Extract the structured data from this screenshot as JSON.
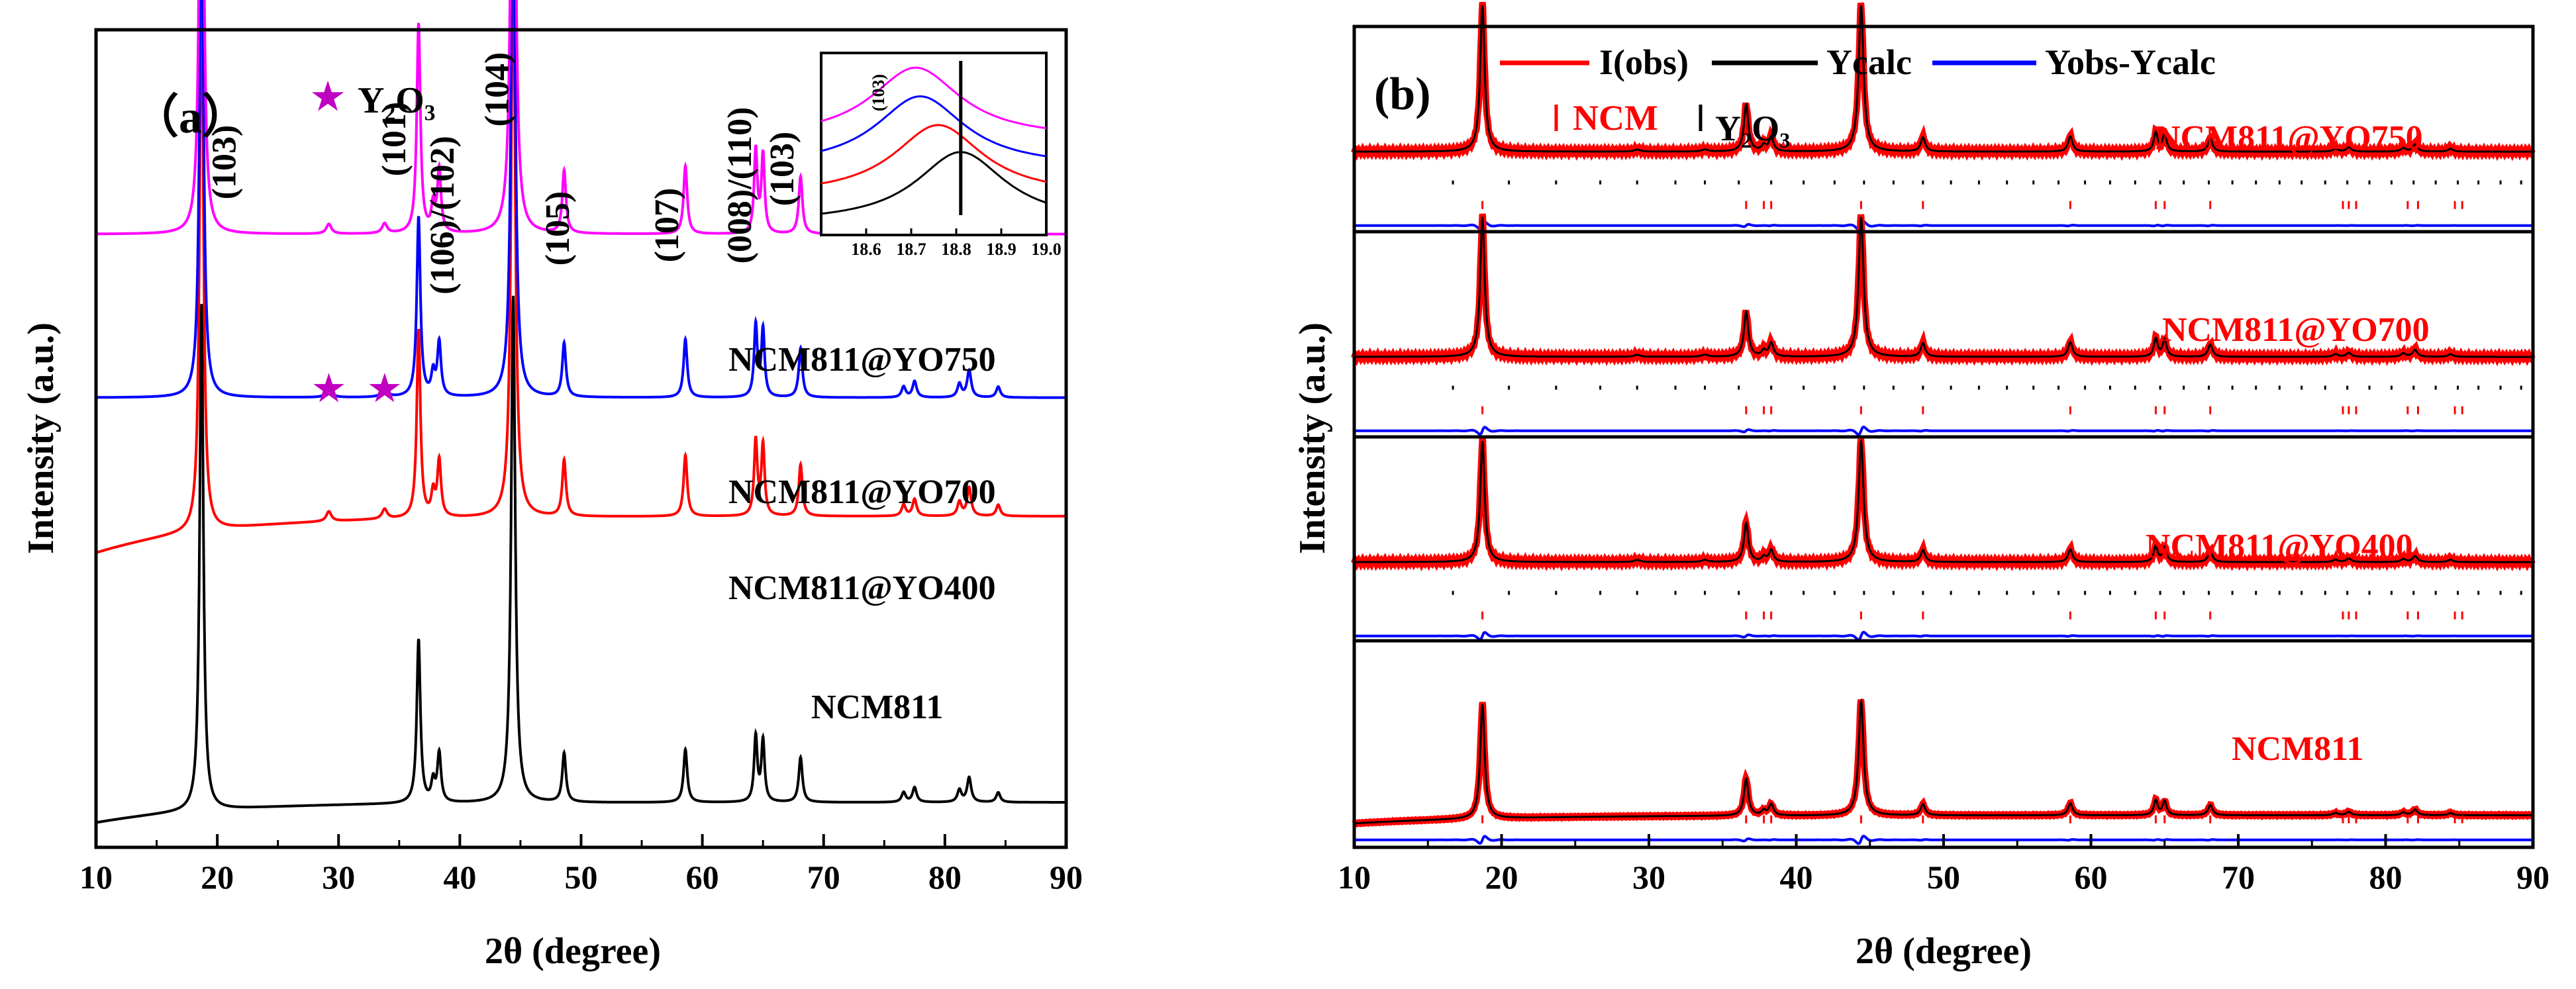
{
  "chart_data": [
    {
      "type": "line",
      "panel_label": "（a）",
      "title": "",
      "xlabel": "2θ (degree)",
      "ylabel": "Intensity (a.u.)",
      "xlim": [
        10,
        90
      ],
      "xticks": [
        "10",
        "20",
        "30",
        "40",
        "50",
        "60",
        "70",
        "80",
        "90"
      ],
      "legend_marker": {
        "symbol": "★",
        "text": "Y₂O₃",
        "color": "#c000c0"
      },
      "series": [
        {
          "name": "NCM811",
          "color": "#000000",
          "baseline": 0.03,
          "tilt": 0.025,
          "scale": 1.0
        },
        {
          "name": "NCM811@YO400",
          "color": "#ff0000",
          "baseline": 0.36,
          "tilt": 0.045,
          "scale": 1.15
        },
        {
          "name": "NCM811@YO700",
          "color": "#0000ff",
          "baseline": 0.55,
          "tilt": 0.0,
          "scale": 1.1
        },
        {
          "name": "NCM811@YO750",
          "color": "#ff00ff",
          "baseline": 0.75,
          "tilt": 0.0,
          "scale": 1.28
        }
      ],
      "peaks": [
        {
          "x": 18.7,
          "h": 0.62,
          "w": 0.18
        },
        {
          "x": 36.6,
          "h": 0.2,
          "w": 0.18
        },
        {
          "x": 37.8,
          "h": 0.025,
          "w": 0.18
        },
        {
          "x": 38.3,
          "h": 0.06,
          "w": 0.18
        },
        {
          "x": 44.4,
          "h": 0.62,
          "w": 0.2
        },
        {
          "x": 48.6,
          "h": 0.06,
          "w": 0.18
        },
        {
          "x": 58.6,
          "h": 0.065,
          "w": 0.18
        },
        {
          "x": 64.4,
          "h": 0.08,
          "w": 0.16
        },
        {
          "x": 65.0,
          "h": 0.075,
          "w": 0.16
        },
        {
          "x": 68.1,
          "h": 0.055,
          "w": 0.18
        },
        {
          "x": 76.6,
          "h": 0.012,
          "w": 0.2
        },
        {
          "x": 77.5,
          "h": 0.018,
          "w": 0.2
        },
        {
          "x": 81.2,
          "h": 0.015,
          "w": 0.2
        },
        {
          "x": 82.0,
          "h": 0.03,
          "w": 0.2
        },
        {
          "x": 84.4,
          "h": 0.012,
          "w": 0.2
        }
      ],
      "y2o3_peaks": [
        29.2,
        33.8
      ],
      "y2o3_markers": [
        29.2,
        33.8
      ],
      "peak_labels": [
        {
          "text": "(103)",
          "x": 21.5
        },
        {
          "text": "(101)",
          "x": 35.5
        },
        {
          "text": "(106)/(102)",
          "x": 39.5
        },
        {
          "text": "(104)",
          "x": 44.0
        },
        {
          "text": "(105)",
          "x": 49.0
        },
        {
          "text": "(107)",
          "x": 58.0
        },
        {
          "text": "(008)/(110)",
          "x": 64.0
        },
        {
          "text": "(103)",
          "x": 67.5
        }
      ],
      "inset": {
        "xlim": [
          18.5,
          19.0
        ],
        "xticks": [
          "18.6",
          "18.7",
          "18.8",
          "18.9",
          "19.0"
        ],
        "label": "(103)",
        "vertical_line_x": 18.81,
        "curves": [
          {
            "series": "NCM811",
            "center": 18.81,
            "offset": 0.0
          },
          {
            "series": "NCM811@YO400",
            "center": 18.76,
            "offset": 0.16
          },
          {
            "series": "NCM811@YO700",
            "center": 18.72,
            "offset": 0.33
          },
          {
            "series": "NCM811@YO750",
            "center": 18.71,
            "offset": 0.5
          }
        ]
      }
    },
    {
      "type": "line",
      "panel_label": "(b)",
      "title": "",
      "xlabel": "2θ (degree)",
      "ylabel": "Intensity (a.u.)",
      "xlim": [
        10,
        90
      ],
      "xticks": [
        "10",
        "20",
        "30",
        "40",
        "50",
        "60",
        "70",
        "80",
        "90"
      ],
      "legend": [
        {
          "text": "I(obs)",
          "color": "#ff0000"
        },
        {
          "text": "Ycalc",
          "color": "#000000"
        },
        {
          "text": "Yobs-Ycalc",
          "color": "#0000ff"
        }
      ],
      "tick_legend": [
        {
          "text": "NCM",
          "color": "#ff0000"
        },
        {
          "text": "Y₂O₃",
          "color": "#000000"
        }
      ],
      "panels": [
        {
          "name": "NCM811@YO750",
          "has_y2o3": true
        },
        {
          "name": "NCM811@YO700",
          "has_y2o3": true
        },
        {
          "name": "NCM811@YO400",
          "has_y2o3": true
        },
        {
          "name": "NCM811",
          "has_y2o3": false
        }
      ],
      "ncm_bragg_positions": [
        18.7,
        36.6,
        37.8,
        38.3,
        44.4,
        48.6,
        58.6,
        64.4,
        65.0,
        68.1,
        77.1,
        77.5,
        78.0,
        81.5,
        82.2,
        84.7,
        85.2
      ],
      "y2o3_bragg_positions": [
        16.7,
        20.5,
        23.7,
        26.7,
        29.2,
        31.8,
        33.8,
        36.1,
        38.3,
        40.5,
        42.6,
        44.6,
        46.6,
        48.6,
        50.5,
        52.4,
        54.3,
        56.1,
        57.8,
        59.6,
        61.3,
        63.0,
        64.7,
        66.3,
        68.0,
        69.6,
        71.2,
        72.8,
        74.3,
        75.9,
        77.4,
        78.9,
        80.4,
        81.9,
        83.4,
        84.9,
        86.3,
        87.8,
        89.2
      ]
    }
  ]
}
